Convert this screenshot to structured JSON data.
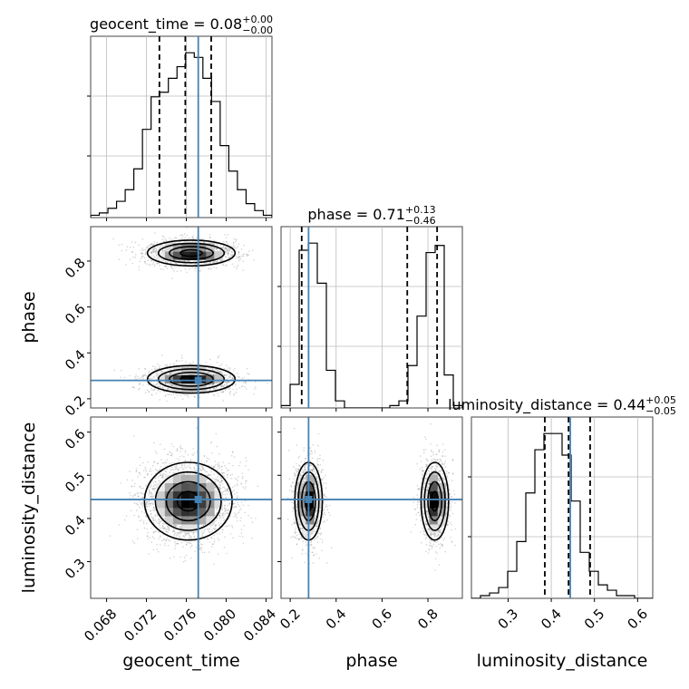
{
  "chart_data": {
    "type": "corner",
    "colors": {
      "truth": "#4682b4",
      "hist": "#000000",
      "grid": "#bdbdbd"
    },
    "params": [
      {
        "name": "geocent_time",
        "title": {
          "main": "geocent_time = 0.08",
          "sup": "+0.00",
          "sub": "−0.00"
        },
        "range": [
          0.0664,
          0.0846
        ],
        "ticks": [
          0.068,
          0.072,
          0.076,
          0.08,
          0.084
        ],
        "tick_labels": [
          "0.068",
          "0.072",
          "0.076",
          "0.080",
          "0.084"
        ],
        "truth": 0.0772,
        "quantiles": [
          0.0733,
          0.0759,
          0.0785
        ],
        "hist": [
          1,
          2,
          4,
          7,
          12,
          21,
          38,
          52,
          54,
          60,
          65,
          71,
          69,
          60,
          50,
          31,
          20,
          12,
          6,
          3,
          1
        ]
      },
      {
        "name": "phase",
        "title": {
          "main": "phase = 0.71",
          "sup": "+0.13",
          "sub": "−0.46"
        },
        "range": [
          0.16,
          0.95
        ],
        "ticks": [
          0.2,
          0.4,
          0.6,
          0.8
        ],
        "tick_labels": [
          "0.2",
          "0.4",
          "0.6",
          "0.8"
        ],
        "truth": 0.28,
        "quantiles": [
          0.25,
          0.71,
          0.84
        ],
        "hist": [
          1,
          10,
          67,
          70,
          53,
          16,
          3,
          0,
          0,
          0,
          0,
          0,
          1,
          3,
          18,
          39,
          66,
          69,
          14,
          1
        ]
      },
      {
        "name": "luminosity_distance",
        "title": {
          "main": "luminosity_distance = 0.44",
          "sup": "+0.05",
          "sub": "−0.05"
        },
        "range": [
          0.215,
          0.635
        ],
        "ticks": [
          0.3,
          0.4,
          0.5,
          0.6
        ],
        "tick_labels": [
          "0.3",
          "0.4",
          "0.5",
          "0.6"
        ],
        "truth": 0.444,
        "quantiles": [
          0.385,
          0.44,
          0.49
        ],
        "hist": [
          0,
          1,
          2,
          4,
          10,
          21,
          39,
          55,
          61,
          61,
          53,
          36,
          17,
          10,
          5,
          3,
          1,
          1,
          0,
          0
        ]
      }
    ],
    "density_2d": [
      {
        "x": "geocent_time",
        "y": "phase",
        "blobs": [
          {
            "cx": 0.0765,
            "cy": 0.835,
            "sx": 0.0022,
            "sy": 0.028,
            "w": 0.5
          },
          {
            "cx": 0.0765,
            "cy": 0.285,
            "sx": 0.0022,
            "sy": 0.03,
            "w": 0.5
          }
        ]
      },
      {
        "x": "geocent_time",
        "y": "luminosity_distance",
        "blobs": [
          {
            "cx": 0.0762,
            "cy": 0.44,
            "sx": 0.0022,
            "sy": 0.045,
            "w": 1.0
          }
        ]
      },
      {
        "x": "phase",
        "y": "luminosity_distance",
        "blobs": [
          {
            "cx": 0.28,
            "cy": 0.44,
            "sx": 0.03,
            "sy": 0.045,
            "w": 0.5
          },
          {
            "cx": 0.83,
            "cy": 0.44,
            "sx": 0.03,
            "sy": 0.045,
            "w": 0.5
          }
        ]
      }
    ]
  }
}
